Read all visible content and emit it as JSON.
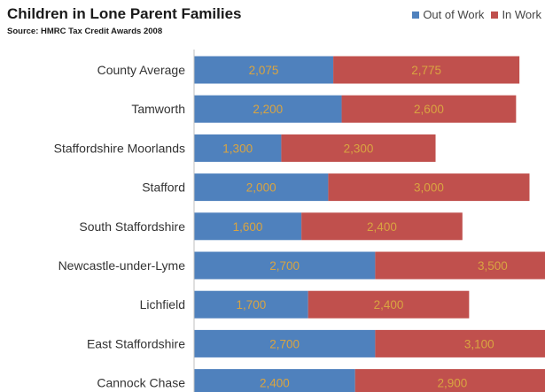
{
  "chart_data": {
    "type": "bar",
    "orientation": "horizontal",
    "stacked": true,
    "title": "Children in Lone Parent Families",
    "subtitle": "Source: HMRC Tax Credit Awards 2008",
    "categories": [
      "County Average",
      "Tamworth",
      "Staffordshire Moorlands",
      "Stafford",
      "South Staffordshire",
      "Newcastle-under-Lyme",
      "Lichfield",
      "East Staffordshire",
      "Cannock Chase"
    ],
    "series": [
      {
        "name": "Out of Work",
        "color": "#4f81bd",
        "values": [
          2075,
          2200,
          1300,
          2000,
          1600,
          2700,
          1700,
          2700,
          2400
        ],
        "labels": [
          "2,075",
          "2,200",
          "1,300",
          "2,000",
          "1,600",
          "2,700",
          "1,700",
          "2,700",
          "2,400"
        ]
      },
      {
        "name": "In Work",
        "color": "#c0504d",
        "values": [
          2775,
          2600,
          2300,
          3000,
          2400,
          3500,
          2400,
          3100,
          2900
        ],
        "labels": [
          "2,775",
          "2,600",
          "2,300",
          "3,000",
          "2,400",
          "3,500",
          "2,400",
          "3,100",
          "2,900"
        ]
      }
    ],
    "xlabel": "",
    "ylabel": "",
    "grid": false,
    "legend_position": "top-right"
  }
}
